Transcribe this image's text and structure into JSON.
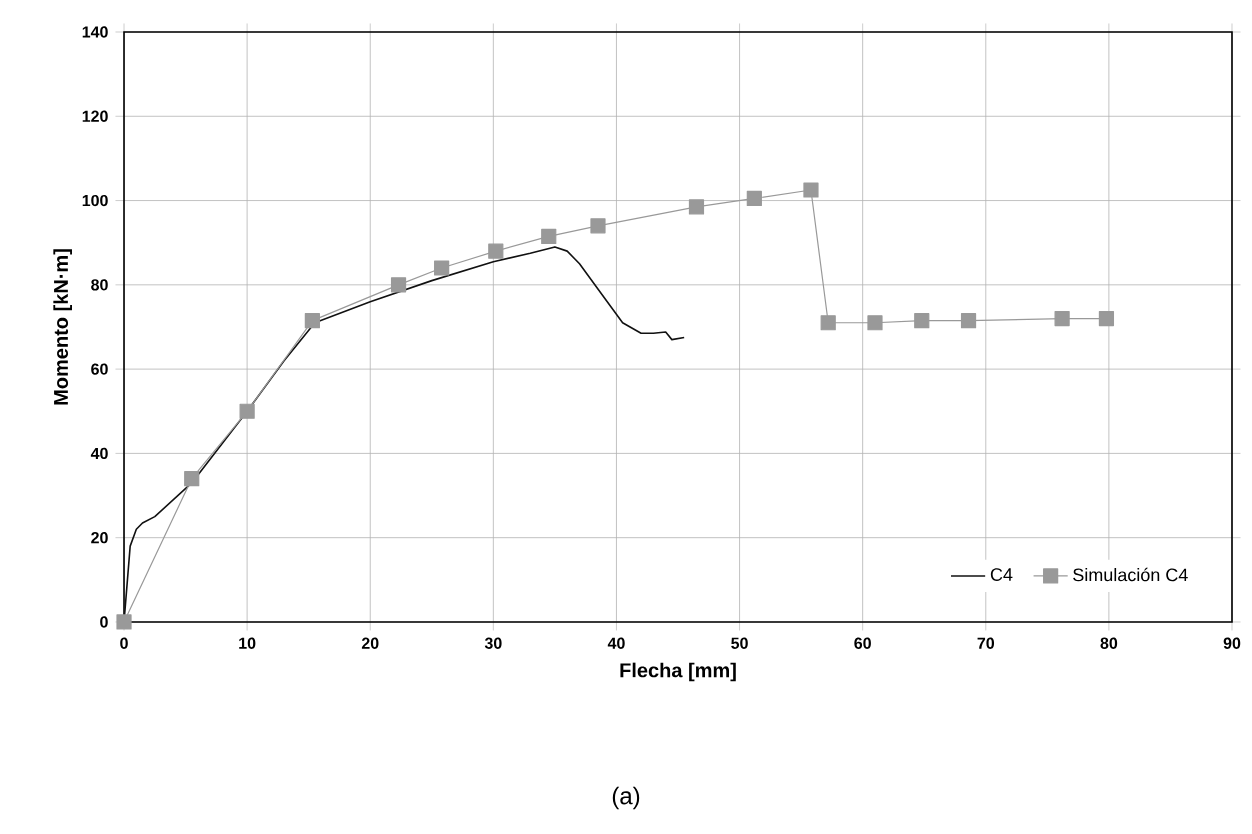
{
  "chart_data": {
    "type": "line",
    "xlabel": "Flecha [mm]",
    "ylabel": "Momento [kN·m]",
    "annotations": [
      "(a)"
    ],
    "xlim": [
      0,
      90
    ],
    "ylim": [
      0,
      140
    ],
    "xticks": [
      0,
      10,
      20,
      30,
      40,
      50,
      60,
      70,
      80,
      90
    ],
    "yticks": [
      0,
      20,
      40,
      60,
      80,
      100,
      120,
      140
    ],
    "grid": true,
    "legend": "bottom right",
    "series": [
      {
        "name": "C4",
        "color": "#111111",
        "marker": "none",
        "x": [
          0,
          0.5,
          1,
          1.5,
          2.5,
          5.5,
          10,
          13,
          15.5,
          20,
          25,
          30,
          33,
          35,
          36,
          37,
          39,
          40.5,
          42,
          43,
          44,
          44.5,
          45.5
        ],
        "values": [
          0,
          18,
          22,
          23.5,
          25,
          33,
          50,
          62,
          71,
          76,
          81,
          85.5,
          87.5,
          89,
          88,
          85,
          77,
          71,
          68.5,
          68.5,
          68.8,
          67,
          67.5
        ]
      },
      {
        "name": "Simulación C4",
        "color": "#999999",
        "marker": "square",
        "x": [
          0,
          5.5,
          10,
          15.3,
          22.3,
          25.8,
          30.2,
          34.5,
          38.5,
          46.5,
          51.2,
          55.8,
          57.2,
          61,
          64.8,
          68.6,
          76.2,
          79.8
        ],
        "values": [
          0,
          34,
          50,
          71.5,
          80,
          84,
          88,
          91.5,
          94,
          98.5,
          100.5,
          102.5,
          71,
          71,
          71.5,
          71.5,
          72,
          72
        ]
      }
    ]
  }
}
